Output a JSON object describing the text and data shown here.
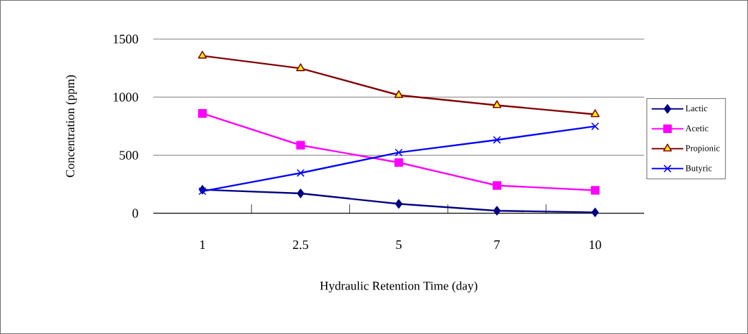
{
  "chart_data": {
    "type": "line",
    "xlabel": "Hydraulic Retention Time (day)",
    "ylabel": "Concentration (ppm)",
    "categories": [
      "1",
      "2.5",
      "5",
      "7",
      "10"
    ],
    "series": [
      {
        "name": "Lactic",
        "color": "#000080",
        "marker": "diamond",
        "values": [
          203,
          171,
          81,
          22,
          8
        ]
      },
      {
        "name": "Acetic",
        "color": "#ff00ff",
        "marker": "square",
        "values": [
          860,
          586,
          437,
          239,
          198
        ]
      },
      {
        "name": "Propionic",
        "color": "#800000",
        "marker": "triangle",
        "values": [
          1356,
          1248,
          1017,
          930,
          852
        ]
      },
      {
        "name": "Butyric",
        "color": "#0000ff",
        "marker": "cross",
        "values": [
          190,
          347,
          523,
          632,
          749
        ]
      }
    ],
    "ylim": [
      0,
      1500
    ],
    "yticks": [
      0,
      500,
      1000,
      1500
    ],
    "grid": "y",
    "legend": "right",
    "line_style": "solid"
  }
}
